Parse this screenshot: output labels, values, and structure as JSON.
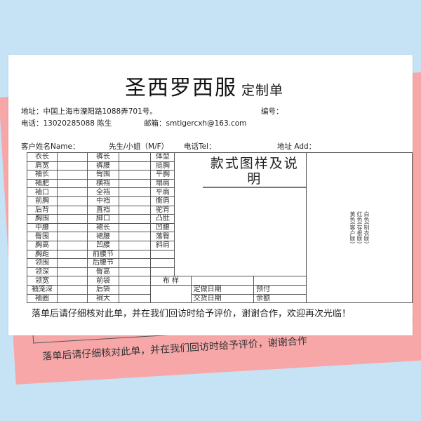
{
  "brand": {
    "name": "圣西罗西服",
    "doc_type": "定制单"
  },
  "header": {
    "address": "地址：中国上海市溧阳路1088弄701号。",
    "serial_label": "编号：",
    "phone": "电话：13020285088 陈生",
    "email": "邮箱：smtigercxh@163.com"
  },
  "customer": {
    "name_label": "客户姓名Name：",
    "gender_label": "先生/小姐（M/F）",
    "tel_label": "电话Tel：",
    "address_label": "地址 Add："
  },
  "table": {
    "col1": [
      "衣长",
      "肩宽",
      "袖长",
      "袖肥",
      "袖口",
      "前胸",
      "后背",
      "胸围",
      "中腰",
      "臀围",
      "胸高",
      "胸距",
      "领围",
      "领深",
      "领宽",
      "袖笼深",
      "袖圈"
    ],
    "col3": [
      "裤长",
      "裤腰",
      "臀围",
      "横裆",
      "全裆",
      "中裆",
      "直裆",
      "脚口",
      "裙长",
      "裙腰",
      "凹腰",
      "前腰节",
      "后腰节",
      "臀高",
      "前袋",
      "后袋",
      "裥大"
    ],
    "body_type": [
      "体型",
      "挺胸",
      "平胸",
      "塌肩",
      "平肩",
      "衡肩",
      "驼背",
      "凸肚",
      "凹腰",
      "落臀",
      "斜肩"
    ],
    "style_heading": "款式图样及说明",
    "fabric_label": "布 样",
    "order_date_label": "定做日期",
    "delivery_date_label": "交货日期",
    "deposit_label": "预付",
    "balance_label": "余额",
    "copies": [
      "白色(制衣联)",
      "红色(存根联)",
      "黄色(客户联)"
    ]
  },
  "footer": "落单后请仔细核对此单，并在我们回访时给予评价，谢谢合作，欢迎再次光临！",
  "underlay": {
    "footer": "落单后请仔细核对此单，并在我们回访时给予评价，谢谢合作"
  },
  "colors": {
    "background": "#c6e3f6",
    "pink_copy": "#f7a7a8",
    "sheet": "#ffffff"
  }
}
